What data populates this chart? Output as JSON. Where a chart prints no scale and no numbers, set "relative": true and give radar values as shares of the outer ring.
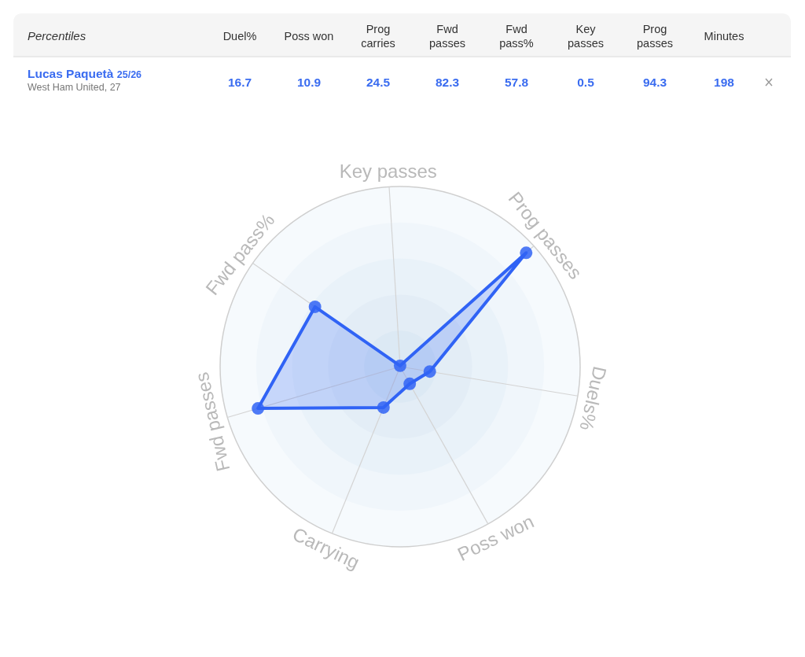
{
  "chart_data": [
    {
      "type": "other",
      "title": "Percentiles",
      "categories": [
        "Duel%",
        "Poss won",
        "Prog carries",
        "Fwd passes",
        "Fwd pass%",
        "Key passes",
        "Prog passes",
        "Minutes"
      ],
      "series": [
        {
          "name": "Lucas Paquetà",
          "color": "#3a6cf0",
          "values": [
            16.7,
            10.9,
            24.5,
            82.3,
            57.8,
            0.5,
            94.3,
            198
          ]
        }
      ],
      "data_labels": true,
      "annotations": [
        "25/26",
        "West Ham United, 27"
      ]
    },
    {
      "type": "radar",
      "categories": [
        "Key passes",
        "Prog passes",
        "Duels%",
        "Poss won",
        "Carrying",
        "Fwd passes",
        "Fwd pass%"
      ],
      "relative": true,
      "grid": true,
      "marker": "circle",
      "series": [
        {
          "color": "#3063f5",
          "values": [
            0.005,
            0.943,
            0.167,
            0.109,
            0.245,
            0.823,
            0.578
          ]
        }
      ]
    }
  ]
}
